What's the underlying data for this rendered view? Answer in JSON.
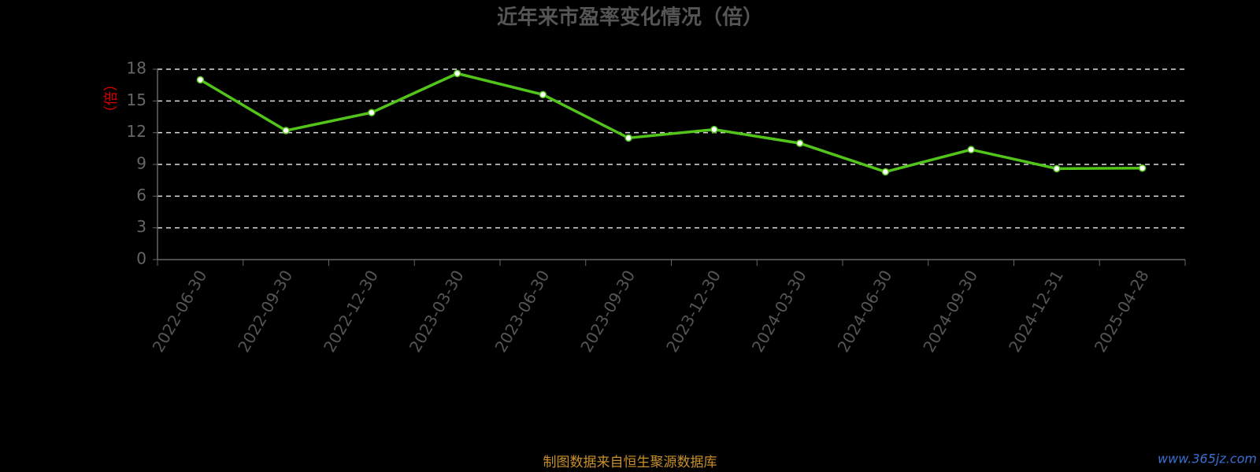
{
  "chart_data": {
    "type": "line",
    "title": "近年来市盈率变化情况（倍）",
    "y_label": "（倍）",
    "categories": [
      "2022-06-30",
      "2022-09-30",
      "2022-12-30",
      "2023-03-30",
      "2023-06-30",
      "2023-09-30",
      "2023-12-30",
      "2024-03-30",
      "2024-06-30",
      "2024-09-30",
      "2024-12-31",
      "2025-04-28"
    ],
    "values": [
      17.0,
      12.2,
      13.9,
      17.6,
      15.6,
      11.5,
      12.3,
      11.0,
      8.3,
      10.4,
      8.6,
      8.65
    ],
    "color": "#52c41a",
    "ylim": [
      0,
      18
    ],
    "yticks": [
      0,
      3,
      6,
      9,
      12,
      15,
      18
    ],
    "grid": true,
    "source": "制图数据来自恒生聚源数据库",
    "watermark": "www.365jz.com"
  }
}
